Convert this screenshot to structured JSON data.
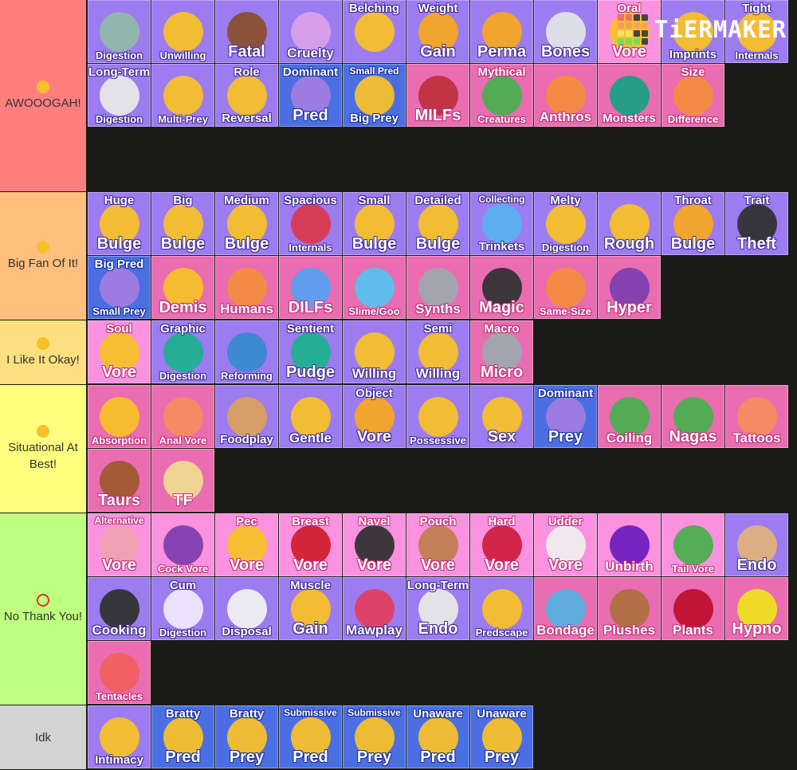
{
  "logo": {
    "text": "TiERMAKER",
    "grid_colors": [
      "#f26d6d",
      "#f26d6d",
      "#444",
      "#444",
      "#f5a15c",
      "#f5a15c",
      "#f5a15c",
      "#f5a15c",
      "#f4e05a",
      "#f4e05a",
      "#444",
      "#444",
      "#6de05a",
      "#6de05a",
      "#6de05a",
      "#444"
    ]
  },
  "tiers": [
    {
      "label": "AWOOOGAH!",
      "emoji": "smiling-face-with-heart-eyes",
      "emoji_color": "#f7c02a",
      "color": "#ff7f7f",
      "rows": 3,
      "items": [
        {
          "top": "",
          "bottom": "Digestion",
          "style": "purple",
          "icon": "bubbles",
          "icon_color": "#8fb8a8"
        },
        {
          "top": "",
          "bottom": "Unwilling",
          "style": "purple",
          "icon": "confounded-face",
          "icon_color": "#f7c02a"
        },
        {
          "top": "",
          "bottom": "Fatal",
          "style": "purple",
          "icon": "coffin",
          "icon_color": "#8a5030"
        },
        {
          "top": "",
          "bottom": "Cruelty",
          "style": "purple",
          "icon": "angry-devil",
          "icon_color": "#d9a0e8"
        },
        {
          "top": "Belching",
          "bottom": "",
          "style": "purple",
          "icon": "grinning-cat",
          "icon_color": "#f7c02a"
        },
        {
          "top": "Weight",
          "bottom": "Gain",
          "style": "purple",
          "icon": "balance-scale",
          "icon_color": "#f5a623"
        },
        {
          "top": "",
          "bottom": "Perma",
          "style": "purple",
          "icon": "lock",
          "icon_color": "#f5a623"
        },
        {
          "top": "",
          "bottom": "Bones",
          "style": "purple",
          "icon": "skull",
          "icon_color": "#e0e4e8"
        },
        {
          "top": "Oral",
          "bottom": "Vore",
          "style": "lpink",
          "icon": "open-mouth",
          "icon_color": "#f7c02a"
        },
        {
          "top": "",
          "bottom": "Imprints",
          "style": "purple",
          "icon": "thumbs-up-face",
          "icon_color": "#f7c02a"
        },
        {
          "top": "Tight",
          "bottom": "Internals",
          "style": "purple",
          "icon": "woozy-face",
          "icon_color": "#f7c02a"
        },
        {
          "top": "Long-Term",
          "bottom": "Digestion",
          "style": "purple",
          "icon": "clock",
          "icon_color": "#e8e8e8"
        },
        {
          "top": "",
          "bottom": "Multi-Prey",
          "style": "purple",
          "icon": "many-faces",
          "icon_color": "#f7c02a"
        },
        {
          "top": "Role",
          "bottom": "Reversal",
          "style": "purple",
          "icon": "hands",
          "icon_color": "#f7c02a"
        },
        {
          "top": "Dominant",
          "bottom": "Pred",
          "style": "blue",
          "icon": "smiling-devil",
          "icon_color": "#a07ce0"
        },
        {
          "top": "Small Pred",
          "bottom": "Big Prey",
          "style": "blue",
          "icon": "flushed-face",
          "icon_color": "#f7c02a"
        },
        {
          "top": "",
          "bottom": "MILFs",
          "style": "pink",
          "icon": "wine-glass",
          "icon_color": "#c03040"
        },
        {
          "top": "Mythical",
          "bottom": "Creatures",
          "style": "pink",
          "icon": "dragon",
          "icon_color": "#4caf50"
        },
        {
          "top": "",
          "bottom": "Anthros",
          "style": "pink",
          "icon": "cat-person",
          "icon_color": "#f58c40"
        },
        {
          "top": "",
          "bottom": "Monsters",
          "style": "pink",
          "icon": "dragon-head",
          "icon_color": "#1aa085"
        },
        {
          "top": "Size",
          "bottom": "Difference",
          "style": "pink",
          "icon": "people",
          "icon_color": "#f58c40"
        }
      ]
    },
    {
      "label": "Big Fan Of It!",
      "emoji": "grinning-face",
      "emoji_color": "#f7c02a",
      "color": "#ffbf7f",
      "rows": 2,
      "items": [
        {
          "top": "Huge",
          "bottom": "Bulge",
          "style": "purple",
          "icon": "huge-circle",
          "icon_color": "#f7c02a"
        },
        {
          "top": "Big",
          "bottom": "Bulge",
          "style": "purple",
          "icon": "big-circle",
          "icon_color": "#f7c02a"
        },
        {
          "top": "Medium",
          "bottom": "Bulge",
          "style": "purple",
          "icon": "medium-circle",
          "icon_color": "#f7c02a"
        },
        {
          "top": "Spacious",
          "bottom": "Internals",
          "style": "purple",
          "icon": "red-sphere",
          "icon_color": "#d83a50"
        },
        {
          "top": "Small",
          "bottom": "Bulge",
          "style": "purple",
          "icon": "small-circle",
          "icon_color": "#f7c02a"
        },
        {
          "top": "Detailed",
          "bottom": "Bulge",
          "style": "purple",
          "icon": "detailed-circle",
          "icon_color": "#f7c02a"
        },
        {
          "top": "Collecting",
          "bottom": "Trinkets",
          "style": "purple",
          "icon": "briefs",
          "icon_color": "#5ab0f0"
        },
        {
          "top": "Melty",
          "bottom": "Digestion",
          "style": "purple",
          "icon": "melting-face",
          "icon_color": "#f7c02a"
        },
        {
          "top": "",
          "bottom": "Rough",
          "style": "purple",
          "icon": "flexing-face",
          "icon_color": "#f7c02a"
        },
        {
          "top": "Throat",
          "bottom": "Bulge",
          "style": "purple",
          "icon": "giraffe",
          "icon_color": "#f5a623"
        },
        {
          "top": "Trait",
          "bottom": "Theft",
          "style": "purple",
          "icon": "person-in-suit",
          "icon_color": "#333333"
        },
        {
          "top": "Big Pred",
          "bottom": "Small Prey",
          "style": "blue",
          "icon": "devil-and-face",
          "icon_color": "#a07ce0"
        },
        {
          "top": "",
          "bottom": "Demis",
          "style": "pink",
          "icon": "grinning-cat",
          "icon_color": "#f7c02a"
        },
        {
          "top": "",
          "bottom": "Humans",
          "style": "pink",
          "icon": "person",
          "icon_color": "#f58c40"
        },
        {
          "top": "",
          "bottom": "DILFs",
          "style": "pink",
          "icon": "necktie",
          "icon_color": "#5aa0f0"
        },
        {
          "top": "",
          "bottom": "Slime/Goo",
          "style": "pink",
          "icon": "droplet",
          "icon_color": "#5ac0f0"
        },
        {
          "top": "",
          "bottom": "Synths",
          "style": "pink",
          "icon": "mechanical-arm",
          "icon_color": "#a0a8b0"
        },
        {
          "top": "",
          "bottom": "Magic",
          "style": "pink",
          "icon": "magic-wand",
          "icon_color": "#333333"
        },
        {
          "top": "",
          "bottom": "Same-Size",
          "style": "pink",
          "icon": "two-people",
          "icon_color": "#f58c40"
        },
        {
          "top": "",
          "bottom": "Hyper",
          "style": "pink",
          "icon": "eggplant",
          "icon_color": "#8040b0"
        }
      ]
    },
    {
      "label": "I Like It Okay!",
      "emoji": "slightly-smiling-face",
      "emoji_color": "#f7c02a",
      "color": "#ffdf7f",
      "rows": 1,
      "items": [
        {
          "top": "Soul",
          "bottom": "Vore",
          "style": "lpink",
          "icon": "dizzy-face",
          "icon_color": "#f7c02a"
        },
        {
          "top": "Graphic",
          "bottom": "Digestion",
          "style": "purple",
          "icon": "stomach",
          "icon_color": "#20b090"
        },
        {
          "top": "",
          "bottom": "Reforming",
          "style": "purple",
          "icon": "repeat-arrows",
          "icon_color": "#3a8ad0"
        },
        {
          "top": "Sentient",
          "bottom": "Pudge",
          "style": "purple",
          "icon": "belly-hearts",
          "icon_color": "#20b090"
        },
        {
          "top": "",
          "bottom": "Willing",
          "style": "purple",
          "icon": "heart-eyes-cat",
          "icon_color": "#f7c02a"
        },
        {
          "top": "Semi",
          "bottom": "Willing",
          "style": "purple",
          "icon": "faces",
          "icon_color": "#f7c02a"
        },
        {
          "top": "Macro",
          "bottom": "Micro",
          "style": "pink",
          "icon": "microscope",
          "icon_color": "#a0a8b0"
        }
      ]
    },
    {
      "label": "Situational At Best!",
      "emoji": "neutral-face",
      "emoji_color": "#f7c02a",
      "color": "#ffff7f",
      "rows": 2,
      "items": [
        {
          "top": "",
          "bottom": "Absorption",
          "style": "pink",
          "icon": "sponge",
          "icon_color": "#f7c02a"
        },
        {
          "top": "",
          "bottom": "Anal Vore",
          "style": "pink",
          "icon": "peach",
          "icon_color": "#f58c60"
        },
        {
          "top": "",
          "bottom": "Foodplay",
          "style": "purple",
          "icon": "sandwich",
          "icon_color": "#d8a060"
        },
        {
          "top": "",
          "bottom": "Gentle",
          "style": "purple",
          "icon": "hugging-face",
          "icon_color": "#f7c02a"
        },
        {
          "top": "Object",
          "bottom": "Vore",
          "style": "purple",
          "icon": "bus",
          "icon_color": "#f5a623"
        },
        {
          "top": "",
          "bottom": "Possessive",
          "style": "purple",
          "icon": "cat-hands",
          "icon_color": "#f7c02a"
        },
        {
          "top": "",
          "bottom": "Sex",
          "style": "purple",
          "icon": "kissing-face",
          "icon_color": "#f7c02a"
        },
        {
          "top": "Dominant",
          "bottom": "Prey",
          "style": "blue",
          "icon": "smiling-devil",
          "icon_color": "#a07ce0"
        },
        {
          "top": "",
          "bottom": "Coiling",
          "style": "pink",
          "icon": "snake",
          "icon_color": "#4caf50"
        },
        {
          "top": "",
          "bottom": "Nagas",
          "style": "pink",
          "icon": "snake",
          "icon_color": "#4caf50"
        },
        {
          "top": "",
          "bottom": "Tattoos",
          "style": "pink",
          "icon": "peach-face",
          "icon_color": "#f58c60"
        },
        {
          "top": "",
          "bottom": "Taurs",
          "style": "pink",
          "icon": "horse",
          "icon_color": "#a05a30"
        },
        {
          "top": "",
          "bottom": "TF",
          "style": "pink",
          "icon": "full-moon",
          "icon_color": "#f0d890"
        }
      ]
    },
    {
      "label": "No Thank You!",
      "emoji": "prohibited",
      "emoji_color": "#e03030",
      "color": "#bfff7f",
      "rows": 3,
      "items": [
        {
          "top": "Alternative",
          "bottom": "Vore",
          "style": "lpink",
          "icon": "pig-nose",
          "icon_color": "#f0a0b0"
        },
        {
          "top": "",
          "bottom": "Cock Vore",
          "style": "lpink",
          "icon": "eggplant",
          "icon_color": "#8040b0"
        },
        {
          "top": "Pec",
          "bottom": "Vore",
          "style": "lpink",
          "icon": "chest",
          "icon_color": "#f7c02a"
        },
        {
          "top": "Breast",
          "bottom": "Vore",
          "style": "lpink",
          "icon": "red-spheres",
          "icon_color": "#d02030"
        },
        {
          "top": "Navel",
          "bottom": "Vore",
          "style": "lpink",
          "icon": "hole",
          "icon_color": "#333333"
        },
        {
          "top": "Pouch",
          "bottom": "Vore",
          "style": "lpink",
          "icon": "kangaroo",
          "icon_color": "#c08050"
        },
        {
          "top": "Hard",
          "bottom": "Vore",
          "style": "lpink",
          "icon": "drops-of-blood",
          "icon_color": "#d02040"
        },
        {
          "top": "Udder",
          "bottom": "Vore",
          "style": "lpink",
          "icon": "cow",
          "icon_color": "#eeeeee"
        },
        {
          "top": "",
          "bottom": "Unbirth",
          "style": "lpink",
          "icon": "pregnant",
          "icon_color": "#7020c0"
        },
        {
          "top": "",
          "bottom": "Tail Vore",
          "style": "lpink",
          "icon": "t-rex",
          "icon_color": "#4caf50"
        },
        {
          "top": "",
          "bottom": "Endo",
          "style": "purple",
          "icon": "yum-face",
          "icon_color": "#e0b080"
        },
        {
          "top": "",
          "bottom": "Cooking",
          "style": "purple",
          "icon": "stew",
          "icon_color": "#333333"
        },
        {
          "top": "Cum",
          "bottom": "Digestion",
          "style": "purple",
          "icon": "sweat-droplets",
          "icon_color": "#f0e8ff"
        },
        {
          "top": "",
          "bottom": "Disposal",
          "style": "purple",
          "icon": "toilet",
          "icon_color": "#f0f0f0"
        },
        {
          "top": "Muscle",
          "bottom": "Gain",
          "style": "purple",
          "icon": "flexed-biceps",
          "icon_color": "#f7c02a"
        },
        {
          "top": "",
          "bottom": "Mawplay",
          "style": "purple",
          "icon": "tongue",
          "icon_color": "#e04060"
        },
        {
          "top": "Long-Term",
          "bottom": "Endo",
          "style": "purple",
          "icon": "clock",
          "icon_color": "#e8e8e8"
        },
        {
          "top": "",
          "bottom": "Predscape",
          "style": "purple",
          "icon": "thought-bubble-face",
          "icon_color": "#f7c02a"
        },
        {
          "top": "",
          "bottom": "Bondage",
          "style": "pink",
          "icon": "knot",
          "icon_color": "#5ab0e0"
        },
        {
          "top": "",
          "bottom": "Plushes",
          "style": "pink",
          "icon": "teddy-bear",
          "icon_color": "#b07040"
        },
        {
          "top": "",
          "bottom": "Plants",
          "style": "pink",
          "icon": "rose",
          "icon_color": "#c01030"
        },
        {
          "top": "",
          "bottom": "Hypno",
          "style": "pink",
          "icon": "spiral-eyes-face",
          "icon_color": "#f0e020"
        },
        {
          "top": "",
          "bottom": "Tentacles",
          "style": "pink",
          "icon": "octopus",
          "icon_color": "#f06060"
        }
      ]
    },
    {
      "label": "Idk",
      "emoji": "",
      "emoji_color": "",
      "color": "#d3d3d3",
      "rows": 1,
      "items": [
        {
          "top": "",
          "bottom": "Intimacy",
          "style": "purple",
          "icon": "kissing-faces",
          "icon_color": "#f7c02a"
        },
        {
          "top": "Bratty",
          "bottom": "Pred",
          "style": "blue",
          "icon": "pouting-cat",
          "icon_color": "#f7c02a"
        },
        {
          "top": "Bratty",
          "bottom": "Prey",
          "style": "blue",
          "icon": "pouting-cat",
          "icon_color": "#f7c02a"
        },
        {
          "top": "Submissive",
          "bottom": "Pred",
          "style": "blue",
          "icon": "kissing-face",
          "icon_color": "#f7c02a"
        },
        {
          "top": "Submissive",
          "bottom": "Prey",
          "style": "blue",
          "icon": "kissing-face",
          "icon_color": "#f7c02a"
        },
        {
          "top": "Unaware",
          "bottom": "Pred",
          "style": "blue",
          "icon": "surprised-face",
          "icon_color": "#f7c02a"
        },
        {
          "top": "Unaware",
          "bottom": "Prey",
          "style": "blue",
          "icon": "surprised-face",
          "icon_color": "#f7c02a"
        }
      ]
    }
  ]
}
